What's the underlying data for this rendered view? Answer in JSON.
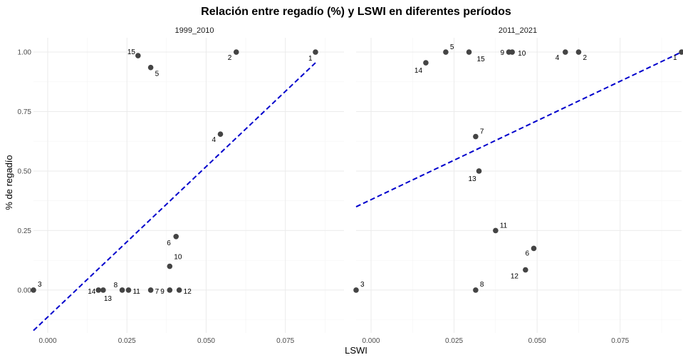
{
  "chart_data": {
    "type": "scatter",
    "title": "Relación entre regadío (%) y LSWI en diferentes períodos",
    "xlabel": "LSWI",
    "ylabel": "% de regadío",
    "xlim": [
      -0.0045,
      0.0935
    ],
    "ylim": [
      -0.18,
      1.06
    ],
    "x_ticks": [
      0.0,
      0.025,
      0.05,
      0.075
    ],
    "x_tick_labels": [
      "0.000",
      "0.025",
      "0.050",
      "0.075"
    ],
    "y_ticks": [
      0.0,
      0.25,
      0.5,
      0.75,
      1.0
    ],
    "y_tick_labels": [
      "0.00",
      "0.25",
      "0.50",
      "0.75",
      "1.00"
    ],
    "grid": true,
    "trend_color": "#0000cc",
    "point_color": "#444444",
    "panels": [
      {
        "name": "1999_2010",
        "points": [
          {
            "label": "1",
            "x": 0.0845,
            "y": 1.0
          },
          {
            "label": "2",
            "x": 0.0595,
            "y": 1.0
          },
          {
            "label": "3",
            "x": -0.0045,
            "y": 0.0
          },
          {
            "label": "4",
            "x": 0.0545,
            "y": 0.655
          },
          {
            "label": "5",
            "x": 0.0325,
            "y": 0.935
          },
          {
            "label": "6",
            "x": 0.0405,
            "y": 0.225
          },
          {
            "label": "7",
            "x": 0.0325,
            "y": 0.0
          },
          {
            "label": "8",
            "x": 0.0235,
            "y": 0.0
          },
          {
            "label": "9",
            "x": 0.0385,
            "y": 0.0
          },
          {
            "label": "10",
            "x": 0.0385,
            "y": 0.1
          },
          {
            "label": "11",
            "x": 0.0255,
            "y": 0.0
          },
          {
            "label": "12",
            "x": 0.0415,
            "y": 0.0
          },
          {
            "label": "13",
            "x": 0.0175,
            "y": 0.0
          },
          {
            "label": "14",
            "x": 0.016,
            "y": 0.0
          },
          {
            "label": "15",
            "x": 0.0285,
            "y": 0.985
          }
        ],
        "trend": {
          "x": [
            -0.0045,
            0.0845
          ],
          "y": [
            -0.17,
            0.955
          ]
        }
      },
      {
        "name": "2011_2021",
        "points": [
          {
            "label": "1",
            "x": 0.0935,
            "y": 1.0
          },
          {
            "label": "2",
            "x": 0.0625,
            "y": 1.0
          },
          {
            "label": "3",
            "x": -0.0045,
            "y": 0.0
          },
          {
            "label": "4",
            "x": 0.0585,
            "y": 1.0
          },
          {
            "label": "5",
            "x": 0.0225,
            "y": 1.0
          },
          {
            "label": "6",
            "x": 0.049,
            "y": 0.175
          },
          {
            "label": "7",
            "x": 0.0315,
            "y": 0.645
          },
          {
            "label": "8",
            "x": 0.0315,
            "y": 0.0
          },
          {
            "label": "9",
            "x": 0.0415,
            "y": 1.0
          },
          {
            "label": "10",
            "x": 0.0425,
            "y": 1.0
          },
          {
            "label": "11",
            "x": 0.0375,
            "y": 0.25
          },
          {
            "label": "12",
            "x": 0.0465,
            "y": 0.085
          },
          {
            "label": "13",
            "x": 0.0325,
            "y": 0.5
          },
          {
            "label": "14",
            "x": 0.0165,
            "y": 0.955
          },
          {
            "label": "15",
            "x": 0.0295,
            "y": 1.0
          }
        ],
        "trend": {
          "x": [
            -0.0045,
            0.0935
          ],
          "y": [
            0.35,
            1.0
          ]
        }
      }
    ]
  }
}
